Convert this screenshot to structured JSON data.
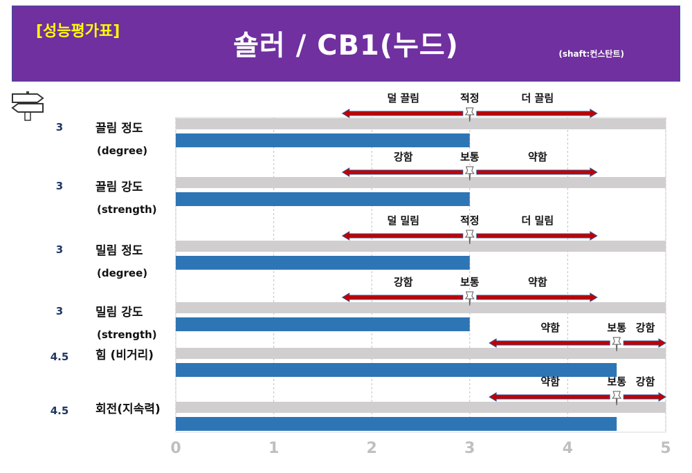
{
  "header": {
    "tag": "[성능평가표]",
    "title": "숄러 / CB1(누드)",
    "subtitle": "(shaft:컨스탄트)"
  },
  "colors": {
    "header_bg": "#7030a0",
    "tag_text": "#ffff00",
    "bar": "#2e75b6",
    "track": "#d0cece",
    "arrow": "#c00000",
    "value_text": "#1f3864",
    "axis_tick": "#bfbfbf"
  },
  "icons": {
    "corner": "signpost-icon",
    "marker": "pushpin-icon"
  },
  "chart_data": {
    "type": "bar",
    "orientation": "horizontal",
    "categories": [
      {
        "name": "끌림 정도",
        "sub": "(degree)"
      },
      {
        "name": "끌림 강도",
        "sub": "(strength)"
      },
      {
        "name": "밀림 정도",
        "sub": "(degree)"
      },
      {
        "name": "밀림 강도",
        "sub": "(strength)"
      },
      {
        "name": "힘 (비거리)",
        "sub": ""
      },
      {
        "name": "회전(지속력)",
        "sub": ""
      }
    ],
    "values": [
      3,
      3,
      3,
      3,
      4.5,
      4.5
    ],
    "value_labels": [
      "3",
      "3",
      "3",
      "3",
      "4.5",
      "4.5"
    ],
    "xlim": [
      0,
      5
    ],
    "xticks": [
      "0",
      "1",
      "2",
      "3",
      "4",
      "5"
    ],
    "grid": true,
    "scales": [
      {
        "left": "덜 끌림",
        "center": "적정",
        "right": "더 끌림",
        "marker": 3
      },
      {
        "left": "강함",
        "center": "보통",
        "right": "약함",
        "marker": 3
      },
      {
        "left": "덜 밀림",
        "center": "적정",
        "right": "더 밀림",
        "marker": 3
      },
      {
        "left": "강함",
        "center": "보통",
        "right": "약함",
        "marker": 3
      },
      {
        "left": "약함",
        "center": "보통",
        "right": "강함",
        "marker": 4.5
      },
      {
        "left": "약함",
        "center": "보통",
        "right": "강함",
        "marker": 4.5
      }
    ]
  }
}
